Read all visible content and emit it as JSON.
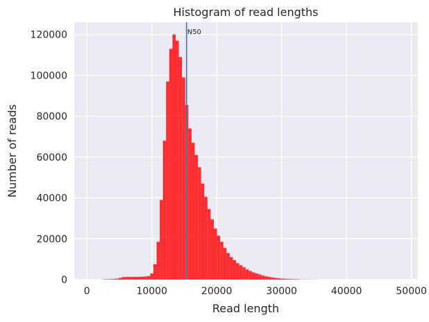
{
  "chart_data": {
    "type": "bar",
    "title": "Histogram of read lengths",
    "xlabel": "Read length",
    "ylabel": "Number of reads",
    "xlim": [
      -1950,
      51000
    ],
    "ylim": [
      0,
      126000
    ],
    "xticks": [
      0,
      10000,
      20000,
      30000,
      40000,
      50000
    ],
    "yticks": [
      0,
      20000,
      40000,
      60000,
      80000,
      100000,
      120000
    ],
    "grid": true,
    "bin_width": 490,
    "bins": [
      {
        "x": 2400,
        "y": 150
      },
      {
        "x": 2890,
        "y": 200
      },
      {
        "x": 3380,
        "y": 250
      },
      {
        "x": 3870,
        "y": 300
      },
      {
        "x": 4360,
        "y": 450
      },
      {
        "x": 4850,
        "y": 800
      },
      {
        "x": 5340,
        "y": 1200
      },
      {
        "x": 5830,
        "y": 1300
      },
      {
        "x": 6320,
        "y": 1300
      },
      {
        "x": 6810,
        "y": 1300
      },
      {
        "x": 7300,
        "y": 1300
      },
      {
        "x": 7790,
        "y": 1300
      },
      {
        "x": 8280,
        "y": 1400
      },
      {
        "x": 8770,
        "y": 1500
      },
      {
        "x": 9260,
        "y": 1700
      },
      {
        "x": 9750,
        "y": 3000
      },
      {
        "x": 10240,
        "y": 7500
      },
      {
        "x": 10730,
        "y": 18500
      },
      {
        "x": 11220,
        "y": 39000
      },
      {
        "x": 11710,
        "y": 68000
      },
      {
        "x": 12200,
        "y": 97000
      },
      {
        "x": 12690,
        "y": 113000
      },
      {
        "x": 13180,
        "y": 120000
      },
      {
        "x": 13670,
        "y": 117000
      },
      {
        "x": 14160,
        "y": 109000
      },
      {
        "x": 14650,
        "y": 99000
      },
      {
        "x": 15140,
        "y": 85500
      },
      {
        "x": 15630,
        "y": 74000
      },
      {
        "x": 16120,
        "y": 67000
      },
      {
        "x": 16610,
        "y": 61000
      },
      {
        "x": 17100,
        "y": 55000
      },
      {
        "x": 17590,
        "y": 47000
      },
      {
        "x": 18080,
        "y": 40500
      },
      {
        "x": 18570,
        "y": 34500
      },
      {
        "x": 19060,
        "y": 29500
      },
      {
        "x": 19550,
        "y": 25000
      },
      {
        "x": 20040,
        "y": 21500
      },
      {
        "x": 20530,
        "y": 18500
      },
      {
        "x": 21020,
        "y": 15500
      },
      {
        "x": 21510,
        "y": 13000
      },
      {
        "x": 22000,
        "y": 11000
      },
      {
        "x": 22490,
        "y": 9500
      },
      {
        "x": 22980,
        "y": 8000
      },
      {
        "x": 23470,
        "y": 7000
      },
      {
        "x": 23960,
        "y": 6000
      },
      {
        "x": 24450,
        "y": 5000
      },
      {
        "x": 24940,
        "y": 4200
      },
      {
        "x": 25430,
        "y": 3500
      },
      {
        "x": 25920,
        "y": 3000
      },
      {
        "x": 26410,
        "y": 2500
      },
      {
        "x": 26900,
        "y": 2000
      },
      {
        "x": 27390,
        "y": 1600
      },
      {
        "x": 27880,
        "y": 1300
      },
      {
        "x": 28370,
        "y": 1000
      },
      {
        "x": 28860,
        "y": 800
      },
      {
        "x": 29350,
        "y": 650
      },
      {
        "x": 29840,
        "y": 500
      },
      {
        "x": 30330,
        "y": 400
      },
      {
        "x": 30820,
        "y": 300
      },
      {
        "x": 31310,
        "y": 250
      },
      {
        "x": 31800,
        "y": 200
      },
      {
        "x": 32290,
        "y": 150
      },
      {
        "x": 32780,
        "y": 100
      },
      {
        "x": 33270,
        "y": 80
      },
      {
        "x": 33760,
        "y": 60
      },
      {
        "x": 34250,
        "y": 50
      },
      {
        "x": 34740,
        "y": 40
      }
    ],
    "bar_color": "#ff0000",
    "bar_alpha": 0.8,
    "vline": {
      "x": 15350,
      "label": "N50",
      "color": "#4c72b0"
    },
    "background": "#eaeaf2"
  }
}
